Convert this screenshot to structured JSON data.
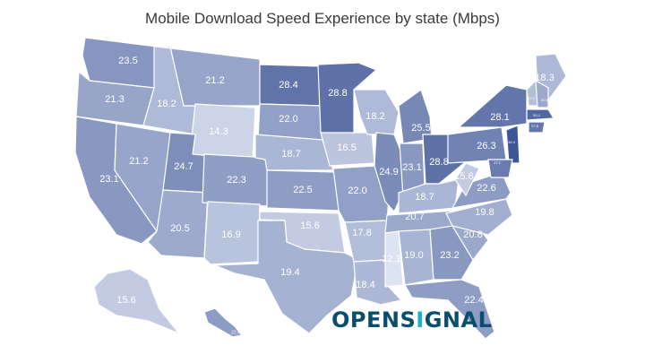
{
  "title": "Mobile Download Speed Experience by state (Mbps)",
  "logo": {
    "prefix": "OPENS",
    "accent": "I",
    "suffix": "GNAL"
  },
  "colors": {
    "low": "#dde4f2",
    "high": "#3e5596",
    "text": "#3a3a3a",
    "logo": "#0b4d6c",
    "logo_accent": "#18b3c4"
  },
  "legend": null,
  "states": [
    {
      "name": "WA",
      "value": "23.5"
    },
    {
      "name": "OR",
      "value": "21.3"
    },
    {
      "name": "CA",
      "value": "23.1"
    },
    {
      "name": "ID",
      "value": "18.2"
    },
    {
      "name": "NV",
      "value": "21.2"
    },
    {
      "name": "MT",
      "value": "21.2"
    },
    {
      "name": "WY",
      "value": "14.3"
    },
    {
      "name": "UT",
      "value": "24.7"
    },
    {
      "name": "AZ",
      "value": "20.5"
    },
    {
      "name": "CO",
      "value": "22.3"
    },
    {
      "name": "NM",
      "value": "16.9"
    },
    {
      "name": "ND",
      "value": "28.4"
    },
    {
      "name": "SD",
      "value": "22.0"
    },
    {
      "name": "NE",
      "value": "18.7"
    },
    {
      "name": "KS",
      "value": "22.5"
    },
    {
      "name": "OK",
      "value": "15.6"
    },
    {
      "name": "TX",
      "value": "19.4"
    },
    {
      "name": "MN",
      "value": "28.8"
    },
    {
      "name": "IA",
      "value": "16.5"
    },
    {
      "name": "MO",
      "value": "22.0"
    },
    {
      "name": "AR",
      "value": "17.8"
    },
    {
      "name": "LA",
      "value": "18.4"
    },
    {
      "name": "WI",
      "value": "18.2"
    },
    {
      "name": "IL",
      "value": "24.9"
    },
    {
      "name": "MI",
      "value": "25.5"
    },
    {
      "name": "IN",
      "value": "23.1"
    },
    {
      "name": "OH",
      "value": "28.8"
    },
    {
      "name": "KY",
      "value": "18.7"
    },
    {
      "name": "TN",
      "value": "20.7"
    },
    {
      "name": "MS",
      "value": "12.1"
    },
    {
      "name": "AL",
      "value": "19.0"
    },
    {
      "name": "GA",
      "value": "23.2"
    },
    {
      "name": "FL",
      "value": "22.4"
    },
    {
      "name": "SC",
      "value": "20.8"
    },
    {
      "name": "NC",
      "value": "19.8"
    },
    {
      "name": "VA",
      "value": "22.6"
    },
    {
      "name": "WV",
      "value": "15.6"
    },
    {
      "name": "PA",
      "value": "26.3"
    },
    {
      "name": "NY",
      "value": "28.1"
    },
    {
      "name": "ME",
      "value": "18.3"
    },
    {
      "name": "AK",
      "value": "15.6"
    },
    {
      "name": "VT",
      "value": "17.6"
    },
    {
      "name": "NH",
      "value": "20.6"
    },
    {
      "name": "MA",
      "value": "30.2"
    },
    {
      "name": "CT",
      "value": "27.8"
    },
    {
      "name": "NJ",
      "value": "32.9"
    },
    {
      "name": "MD",
      "value": "27.2"
    },
    {
      "name": "HI",
      "value": "22.6"
    }
  ]
}
